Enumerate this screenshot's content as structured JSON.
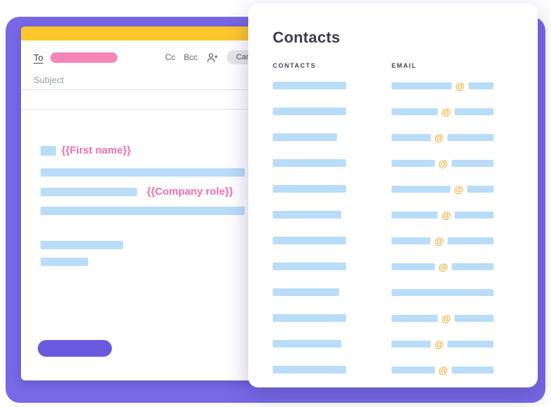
{
  "compose": {
    "to_label": "To",
    "cc_label": "Cc",
    "bcc_label": "Bcc",
    "cancel_label": "Cancel",
    "subject_placeholder": "Subject",
    "greeting_token": "{{First name}}",
    "role_token": "{{Company role}}"
  },
  "contacts_panel": {
    "title": "Contacts",
    "columns": {
      "contacts": "CONTACTS",
      "email": "EMAIL"
    },
    "at_symbol": "@",
    "rows": [
      {
        "name_width": 105,
        "email_seg1": 86,
        "email_seg2": 36,
        "has_at": true
      },
      {
        "name_width": 105,
        "email_seg1": 66,
        "email_seg2": 56,
        "has_at": true
      },
      {
        "name_width": 92,
        "email_seg1": 56,
        "email_seg2": 66,
        "has_at": true
      },
      {
        "name_width": 105,
        "email_seg1": 62,
        "email_seg2": 60,
        "has_at": true
      },
      {
        "name_width": 105,
        "email_seg1": 84,
        "email_seg2": 38,
        "has_at": true
      },
      {
        "name_width": 98,
        "email_seg1": 66,
        "email_seg2": 56,
        "has_at": true
      },
      {
        "name_width": 105,
        "email_seg1": 56,
        "email_seg2": 66,
        "has_at": true
      },
      {
        "name_width": 105,
        "email_seg1": 62,
        "email_seg2": 60,
        "has_at": true
      },
      {
        "name_width": 95,
        "email_seg1": 146,
        "email_seg2": 0,
        "has_at": false
      },
      {
        "name_width": 105,
        "email_seg1": 66,
        "email_seg2": 56,
        "has_at": true
      },
      {
        "name_width": 98,
        "email_seg1": 56,
        "email_seg2": 66,
        "has_at": true
      },
      {
        "name_width": 105,
        "email_seg1": 62,
        "email_seg2": 60,
        "has_at": true
      }
    ]
  },
  "colors": {
    "purple_bg": "#7769E6",
    "yellow_bar": "#FFC62B",
    "pink": "#F584BA",
    "pink_text": "#F06EB0",
    "light_blue": "#B9DDF8",
    "at_yellow": "#F0B33C",
    "button_purple": "#6A5AE0"
  }
}
